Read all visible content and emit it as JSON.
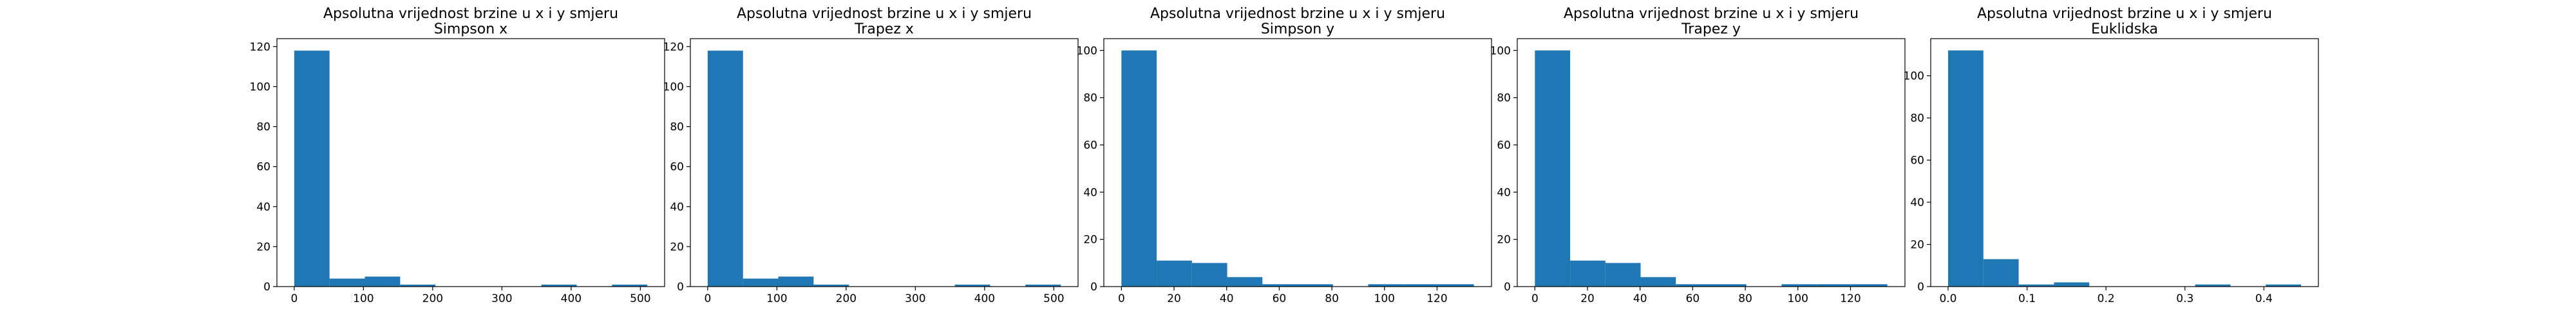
{
  "figure": {
    "background": "#ffffff",
    "bar_color": "#1f77b4"
  },
  "chart_data": [
    {
      "type": "bar",
      "subtype": "histogram",
      "title_line1": "Apsolutna vrijednost brzine u x i y smjeru",
      "title_line2": "Simpson x",
      "xlabel": "",
      "ylabel": "",
      "bin_edges": [
        0,
        51,
        102,
        153,
        204,
        255,
        306,
        357,
        408,
        459,
        510
      ],
      "values": [
        118,
        4,
        5,
        1,
        0,
        0,
        0,
        1,
        0,
        1
      ],
      "xlim": [
        -25,
        535
      ],
      "ylim": [
        0,
        124
      ],
      "xticks": [
        0,
        100,
        200,
        300,
        400,
        500
      ],
      "xtick_labels": [
        "0",
        "100",
        "200",
        "300",
        "400",
        "500"
      ],
      "yticks": [
        0,
        20,
        40,
        60,
        80,
        100,
        120
      ],
      "ytick_labels": [
        "0",
        "20",
        "40",
        "60",
        "80",
        "100",
        "120"
      ],
      "grid": false
    },
    {
      "type": "bar",
      "subtype": "histogram",
      "title_line1": "Apsolutna vrijednost brzine u x i y smjeru",
      "title_line2": "Trapez x",
      "xlabel": "",
      "ylabel": "",
      "bin_edges": [
        0,
        51,
        102,
        153,
        204,
        255,
        306,
        357,
        408,
        459,
        510
      ],
      "values": [
        118,
        4,
        5,
        1,
        0,
        0,
        0,
        1,
        0,
        1
      ],
      "xlim": [
        -25,
        535
      ],
      "ylim": [
        0,
        124
      ],
      "xticks": [
        0,
        100,
        200,
        300,
        400,
        500
      ],
      "xtick_labels": [
        "0",
        "100",
        "200",
        "300",
        "400",
        "500"
      ],
      "yticks": [
        0,
        20,
        40,
        60,
        80,
        100,
        120
      ],
      "ytick_labels": [
        "0",
        "20",
        "40",
        "60",
        "80",
        "100",
        "120"
      ],
      "grid": false
    },
    {
      "type": "bar",
      "subtype": "histogram",
      "title_line1": "Apsolutna vrijednost brzine u x i y smjeru",
      "title_line2": "Simpson y",
      "xlabel": "",
      "ylabel": "",
      "bin_edges": [
        0,
        13.4,
        26.8,
        40.2,
        53.6,
        67,
        80.4,
        93.8,
        107.2,
        120.6,
        134
      ],
      "values": [
        100,
        11,
        10,
        4,
        1,
        1,
        0,
        1,
        1,
        1
      ],
      "xlim": [
        -6.7,
        140.7
      ],
      "ylim": [
        0,
        105
      ],
      "xticks": [
        0,
        20,
        40,
        60,
        80,
        100,
        120
      ],
      "xtick_labels": [
        "0",
        "20",
        "40",
        "60",
        "80",
        "100",
        "120"
      ],
      "yticks": [
        0,
        20,
        40,
        60,
        80,
        100
      ],
      "ytick_labels": [
        "0",
        "20",
        "40",
        "60",
        "80",
        "100"
      ],
      "grid": false
    },
    {
      "type": "bar",
      "subtype": "histogram",
      "title_line1": "Apsolutna vrijednost brzine u x i y smjeru",
      "title_line2": "Trapez y",
      "xlabel": "",
      "ylabel": "",
      "bin_edges": [
        0,
        13.4,
        26.8,
        40.2,
        53.6,
        67,
        80.4,
        93.8,
        107.2,
        120.6,
        134
      ],
      "values": [
        100,
        11,
        10,
        4,
        1,
        1,
        0,
        1,
        1,
        1
      ],
      "xlim": [
        -6.7,
        140.7
      ],
      "ylim": [
        0,
        105
      ],
      "xticks": [
        0,
        20,
        40,
        60,
        80,
        100,
        120
      ],
      "xtick_labels": [
        "0",
        "20",
        "40",
        "60",
        "80",
        "100",
        "120"
      ],
      "yticks": [
        0,
        20,
        40,
        60,
        80,
        100
      ],
      "ytick_labels": [
        "0",
        "20",
        "40",
        "60",
        "80",
        "100"
      ],
      "grid": false
    },
    {
      "type": "bar",
      "subtype": "histogram",
      "title_line1": "Apsolutna vrijednost brzine u x i y smjeru",
      "title_line2": "Euklidska",
      "xlabel": "",
      "ylabel": "",
      "bin_edges": [
        0,
        0.0447,
        0.0894,
        0.1341,
        0.1788,
        0.2235,
        0.2682,
        0.3129,
        0.3576,
        0.4023,
        0.447
      ],
      "values": [
        112,
        13,
        1,
        2,
        0,
        0,
        0,
        1,
        0,
        1
      ],
      "xlim": [
        -0.022,
        0.469
      ],
      "ylim": [
        0,
        117.6
      ],
      "xticks": [
        0,
        0.1,
        0.2,
        0.3,
        0.4
      ],
      "xtick_labels": [
        "0.0",
        "0.1",
        "0.2",
        "0.3",
        "0.4"
      ],
      "yticks": [
        0,
        20,
        40,
        60,
        80,
        100
      ],
      "ytick_labels": [
        "0",
        "20",
        "40",
        "60",
        "80",
        "100"
      ],
      "grid": false
    }
  ]
}
